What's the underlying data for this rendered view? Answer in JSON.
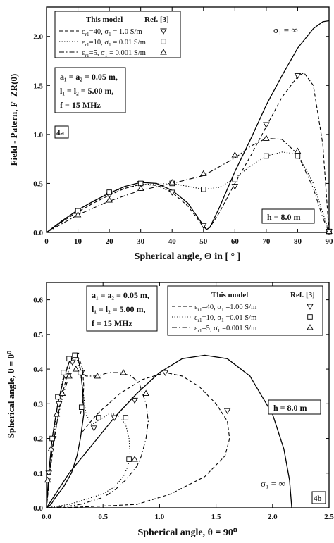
{
  "chart_data": [
    {
      "type": "line",
      "panel_label": "4a",
      "xlabel": "Spherical angle, Θ in [ ° ]",
      "ylabel": "Field - Patern, F_ZR(0)",
      "xlim": [
        0,
        90
      ],
      "ylim": [
        0,
        2.3
      ],
      "xticks": [
        "0",
        "10",
        "20",
        "30",
        "40",
        "50",
        "60",
        "70",
        "80",
        "90"
      ],
      "yticks": [
        "0.0",
        "0.5",
        "1.0",
        "1.5",
        "2.0"
      ],
      "legend": {
        "header_model": "This model",
        "header_ref": "Ref. [3]",
        "entries": [
          {
            "eps": "ε",
            "eps_sub": "r1",
            "eps_val": "=40,",
            "sig": "σ",
            "sig_sub": "1",
            "sig_val": "= 1.0 S/m",
            "marker": "triangle-down"
          },
          {
            "eps": "ε",
            "eps_sub": "r1",
            "eps_val": "=10,",
            "sig": "σ",
            "sig_sub": "1",
            "sig_val": "= 0.01 S/m",
            "marker": "square"
          },
          {
            "eps": "ε",
            "eps_sub": "r1",
            "eps_val": "=5,",
            "sig": "σ",
            "sig_sub": "1",
            "sig_val": "= 0.001 S/m",
            "marker": "triangle-up"
          }
        ]
      },
      "params": [
        "a₁ = a₂ = 0.05 m,",
        "l₁ = l₂ = 5.00 m,",
        "f = 15 MHz"
      ],
      "height_label": "h = 8.0 m",
      "inf_label": "σ₁ = ∞",
      "series": [
        {
          "style": "solid",
          "x": [
            0,
            5,
            10,
            15,
            20,
            25,
            30,
            35,
            40,
            45,
            50,
            51,
            52,
            55,
            60,
            65,
            70,
            75,
            80,
            85,
            88,
            90
          ],
          "y": [
            0,
            0.12,
            0.23,
            0.32,
            0.4,
            0.47,
            0.51,
            0.5,
            0.43,
            0.3,
            0.07,
            0.03,
            0.05,
            0.25,
            0.62,
            0.95,
            1.3,
            1.6,
            1.88,
            2.08,
            2.15,
            2.16
          ]
        },
        {
          "style": "dashed",
          "marker": "triangle-down",
          "x": [
            0,
            5,
            10,
            15,
            20,
            25,
            30,
            35,
            40,
            45,
            50,
            51,
            52,
            55,
            60,
            65,
            70,
            75,
            80,
            82,
            85,
            88,
            90
          ],
          "y": [
            0,
            0.11,
            0.21,
            0.3,
            0.38,
            0.45,
            0.49,
            0.48,
            0.41,
            0.27,
            0.06,
            0.03,
            0.05,
            0.2,
            0.5,
            0.78,
            1.08,
            1.38,
            1.59,
            1.63,
            1.5,
            0.9,
            0
          ],
          "mx": [
            10,
            20,
            30,
            40,
            50,
            60,
            70,
            80,
            90
          ],
          "my": [
            0.2,
            0.38,
            0.5,
            0.41,
            0.07,
            0.47,
            1.1,
            1.6,
            0.01
          ]
        },
        {
          "style": "dotted",
          "marker": "square",
          "x": [
            0,
            10,
            20,
            30,
            40,
            45,
            50,
            55,
            60,
            65,
            70,
            75,
            80,
            85,
            88,
            90
          ],
          "y": [
            0,
            0.22,
            0.41,
            0.49,
            0.5,
            0.47,
            0.44,
            0.46,
            0.55,
            0.68,
            0.78,
            0.82,
            0.8,
            0.5,
            0.2,
            0
          ],
          "mx": [
            10,
            20,
            30,
            40,
            50,
            60,
            70,
            80,
            90
          ],
          "my": [
            0.22,
            0.41,
            0.5,
            0.5,
            0.44,
            0.54,
            0.78,
            0.78,
            0.01
          ]
        },
        {
          "style": "dashdot",
          "marker": "triangle-up",
          "x": [
            0,
            10,
            20,
            30,
            40,
            50,
            60,
            65,
            70,
            75,
            80,
            85,
            88,
            90
          ],
          "y": [
            0,
            0.18,
            0.32,
            0.43,
            0.5,
            0.58,
            0.76,
            0.88,
            0.96,
            0.95,
            0.8,
            0.45,
            0.15,
            0
          ],
          "mx": [
            10,
            20,
            30,
            40,
            50,
            60,
            70,
            80,
            90
          ],
          "my": [
            0.18,
            0.33,
            0.45,
            0.51,
            0.6,
            0.79,
            0.96,
            0.83,
            0.01
          ]
        }
      ]
    },
    {
      "type": "line",
      "panel_label": "4b",
      "xlabel": "Spherical angle, θ = 90⁰",
      "ylabel": "Spherical angle, θ = 0⁰",
      "xlim": [
        0,
        2.5
      ],
      "ylim": [
        0,
        0.65
      ],
      "xticks": [
        "0.0",
        "0.5",
        "1.0",
        "1.5",
        "2.0",
        "2.5"
      ],
      "yticks": [
        "0.0",
        "0.1",
        "0.2",
        "0.3",
        "0.4",
        "0.5",
        "0.6"
      ],
      "legend": {
        "header_model": "This model",
        "header_ref": "Ref. [3]",
        "entries": [
          {
            "eps": "ε",
            "eps_sub": "r1",
            "eps_val": "=40,",
            "sig": "σ",
            "sig_sub": "1",
            "sig_val": "=1.00 S/m",
            "marker": "triangle-down"
          },
          {
            "eps": "ε",
            "eps_sub": "r1",
            "eps_val": "=10,",
            "sig": "σ",
            "sig_sub": "1",
            "sig_val": "=0.01 S/m",
            "marker": "square"
          },
          {
            "eps": "ε",
            "eps_sub": "r1",
            "eps_val": "=5,",
            "sig": "σ",
            "sig_sub": "1",
            "sig_val": "=0.001 S/m",
            "marker": "triangle-up"
          }
        ]
      },
      "params": [
        "a₁ = a₂ = 0.05 m,",
        "l₁ = l₂ = 5.00 m,",
        "f = 15 MHz"
      ],
      "height_label": "h = 8.0 m",
      "inf_label": "σ₁ = ∞",
      "series": [
        {
          "style": "solid",
          "x": [
            0,
            0.02,
            0.05,
            0.1,
            0.15,
            0.2,
            0.25,
            0.28,
            0.3,
            0.32,
            0.33,
            0.3,
            0.27,
            0.22,
            0.15,
            0.08,
            0.04,
            0
          ],
          "y": [
            0,
            0.1,
            0.2,
            0.3,
            0.37,
            0.42,
            0.44,
            0.43,
            0.4,
            0.34,
            0.27,
            0.2,
            0.15,
            0.1,
            0.06,
            0.03,
            0.01,
            0
          ]
        },
        {
          "style": "solid",
          "x": [
            0,
            0.2,
            0.4,
            0.6,
            0.8,
            1.0,
            1.2,
            1.4,
            1.6,
            1.8,
            2.0,
            2.1,
            2.15,
            2.17
          ],
          "y": [
            0,
            0.1,
            0.18,
            0.26,
            0.33,
            0.39,
            0.43,
            0.44,
            0.43,
            0.38,
            0.27,
            0.17,
            0.08,
            0
          ]
        },
        {
          "style": "dashed",
          "marker": "triangle-down",
          "x": [
            0,
            0.03,
            0.07,
            0.12,
            0.18,
            0.23,
            0.26,
            0.29,
            0.32,
            0.33,
            0.32,
            0.3
          ],
          "y": [
            0,
            0.1,
            0.2,
            0.3,
            0.38,
            0.43,
            0.44,
            0.43,
            0.4,
            0.35,
            0.3,
            0.27
          ],
          "mx": [
            0.02,
            0.06,
            0.11,
            0.17,
            0.23,
            0.26,
            0.31
          ],
          "my": [
            0.1,
            0.2,
            0.3,
            0.38,
            0.42,
            0.44,
            0.39
          ]
        },
        {
          "style": "dashed",
          "x": [
            0.32,
            0.37,
            0.42,
            0.48,
            0.55,
            0.65,
            0.75,
            0.85,
            0.95,
            1.05,
            1.2,
            1.35,
            1.5,
            1.6,
            1.62,
            1.58,
            1.4,
            1.1,
            0.8,
            0.5,
            0.2,
            0
          ],
          "y": [
            0.22,
            0.24,
            0.26,
            0.28,
            0.3,
            0.33,
            0.35,
            0.37,
            0.38,
            0.39,
            0.38,
            0.35,
            0.3,
            0.25,
            0.2,
            0.15,
            0.09,
            0.04,
            0.01,
            0.005,
            0.001,
            0
          ],
          "mx": [
            0.42,
            0.6,
            0.78,
            1.05,
            1.6
          ],
          "my": [
            0.23,
            0.26,
            0.31,
            0.39,
            0.28
          ]
        },
        {
          "style": "dotted",
          "marker": "square",
          "x": [
            0,
            0.03,
            0.06,
            0.1,
            0.15,
            0.2,
            0.25,
            0.28,
            0.3,
            0.33,
            0.35,
            0.4,
            0.45,
            0.5,
            0.55,
            0.6,
            0.65,
            0.7,
            0.73,
            0.74,
            0.72,
            0.68,
            0.6,
            0.5,
            0.4,
            0.3,
            0.2,
            0.1,
            0
          ],
          "y": [
            0,
            0.1,
            0.2,
            0.3,
            0.38,
            0.42,
            0.44,
            0.42,
            0.39,
            0.32,
            0.27,
            0.24,
            0.25,
            0.26,
            0.27,
            0.27,
            0.26,
            0.24,
            0.2,
            0.15,
            0.12,
            0.09,
            0.06,
            0.04,
            0.03,
            0.02,
            0.01,
            0.005,
            0
          ],
          "mx": [
            0.02,
            0.05,
            0.1,
            0.15,
            0.2,
            0.25,
            0.3,
            0.31,
            0.46,
            0.7,
            0.73
          ],
          "my": [
            0.09,
            0.2,
            0.32,
            0.39,
            0.43,
            0.44,
            0.39,
            0.29,
            0.26,
            0.26,
            0.14
          ]
        },
        {
          "style": "dashdot",
          "marker": "triangle-up",
          "x": [
            0,
            0.02,
            0.05,
            0.1,
            0.15,
            0.2,
            0.25,
            0.3,
            0.35,
            0.45,
            0.55,
            0.65,
            0.75,
            0.82,
            0.88,
            0.9,
            0.88,
            0.84,
            0.8,
            0.75,
            0.7,
            0.6,
            0.5,
            0.4,
            0.3,
            0.2,
            0.1,
            0
          ],
          "y": [
            0,
            0.08,
            0.17,
            0.26,
            0.33,
            0.38,
            0.4,
            0.39,
            0.38,
            0.38,
            0.39,
            0.39,
            0.38,
            0.36,
            0.3,
            0.25,
            0.2,
            0.15,
            0.12,
            0.1,
            0.08,
            0.05,
            0.03,
            0.02,
            0.01,
            0.005,
            0.002,
            0
          ],
          "mx": [
            0.01,
            0.04,
            0.09,
            0.14,
            0.2,
            0.26,
            0.45,
            0.68,
            0.88,
            0.78
          ],
          "my": [
            0.08,
            0.17,
            0.27,
            0.33,
            0.38,
            0.4,
            0.38,
            0.39,
            0.33,
            0.14
          ]
        }
      ]
    }
  ]
}
